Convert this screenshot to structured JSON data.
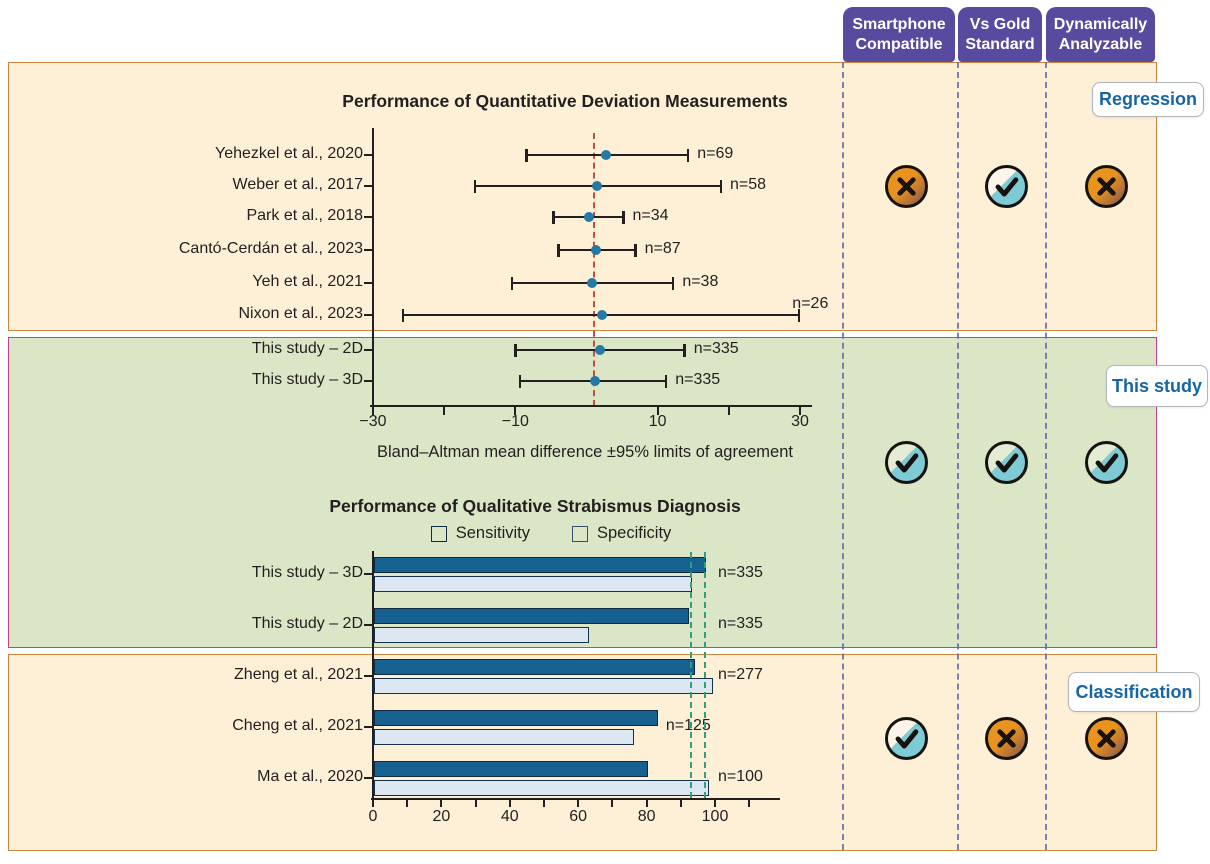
{
  "figure": {
    "columns": [
      "Smartphone Compatible",
      "Vs Gold Standard",
      "Dynamically Analyzable"
    ],
    "groups": [
      {
        "label": "Regression",
        "marks": [
          "no",
          "yes",
          "no"
        ]
      },
      {
        "label": "This study",
        "marks": [
          "yes",
          "yes",
          "yes"
        ]
      },
      {
        "label": "Classification",
        "marks": [
          "yes",
          "no",
          "no"
        ]
      }
    ]
  },
  "chart_data": [
    {
      "type": "scatter",
      "subtype": "forest-plot-error-bars",
      "title": "Performance of Quantitative Deviation Measurements",
      "xlabel": "Bland–Altman mean difference ±95% limits of agreement",
      "xlim": [
        -30,
        30
      ],
      "xticks": [
        -30,
        -20,
        -10,
        10,
        20,
        30
      ],
      "xtick_labels": [
        -30,
        -10,
        10,
        30
      ],
      "reference_line": 1,
      "rows": [
        {
          "label": "Yehezkel et al., 2020",
          "lo": -8.5,
          "mean": 2.8,
          "hi": 14.3,
          "n": "n=69"
        },
        {
          "label": "Weber et al., 2017",
          "lo": -15.7,
          "mean": 1.5,
          "hi": 18.9,
          "n": "n=58"
        },
        {
          "label": "Park et al., 2018",
          "lo": -4.7,
          "mean": 0.3,
          "hi": 5.2,
          "n": "n=34"
        },
        {
          "label": "Cantó-Cerdán et al., 2023",
          "lo": -4.0,
          "mean": 1.4,
          "hi": 6.9,
          "n": "n=87"
        },
        {
          "label": "Yeh et al., 2021",
          "lo": -10.5,
          "mean": 0.8,
          "hi": 12.2,
          "n": "n=38"
        },
        {
          "label": "Nixon et al., 2023",
          "lo": -25.8,
          "mean": 2.2,
          "hi": 29.9,
          "n": "n=26",
          "n_above": true
        },
        {
          "label": "This study – 2D",
          "lo": -10.0,
          "mean": 1.9,
          "hi": 13.8,
          "n": "n=335"
        },
        {
          "label": "This study – 3D",
          "lo": -9.4,
          "mean": 1.2,
          "hi": 11.2,
          "n": "n=335"
        }
      ]
    },
    {
      "type": "bar",
      "subtype": "horizontal-grouped",
      "title": "Performance of Qualitative Strabismus Diagnosis",
      "legend": [
        "Sensitivity",
        "Specificity"
      ],
      "xlim": [
        0,
        117
      ],
      "xticks": [
        0,
        10,
        20,
        30,
        40,
        50,
        60,
        70,
        80,
        90,
        100,
        110
      ],
      "xtick_labels": [
        0,
        20,
        40,
        60,
        80,
        100
      ],
      "reference_lines": [
        93,
        97
      ],
      "rows": [
        {
          "label": "This study – 3D",
          "sensitivity": 97,
          "specificity": 93,
          "n": "n=335"
        },
        {
          "label": "This study – 2D",
          "sensitivity": 92,
          "specificity": 63,
          "n": "n=335"
        },
        {
          "label": "Zheng et al., 2021",
          "sensitivity": 94,
          "specificity": 99,
          "n": "n=277"
        },
        {
          "label": "Cheng et al., 2021",
          "sensitivity": 83,
          "specificity": 76,
          "n": "n=125",
          "n_inline": true
        },
        {
          "label": "Ma et al., 2020",
          "sensitivity": 80,
          "specificity": 98,
          "n": "n=100"
        }
      ]
    }
  ],
  "colors": {
    "sensitivity_bar": "#16618f",
    "specificity_bar": "#dce7f2",
    "forest_dot": "#2579a4",
    "reference_line_red": "#c0503e",
    "reference_line_green": "#2fa07b",
    "panel_cream": "#fdf0d6",
    "panel_cream_border": "#cd853c",
    "panel_green": "#dae6c6",
    "panel_green_border": "#c74193",
    "header_purple": "#584a9e",
    "column_dash": "#6b6bab",
    "label_blue": "#1766a3",
    "icon_orange": "#e8931d",
    "icon_teal": "#7ecbd6",
    "ink": "#231f20"
  }
}
